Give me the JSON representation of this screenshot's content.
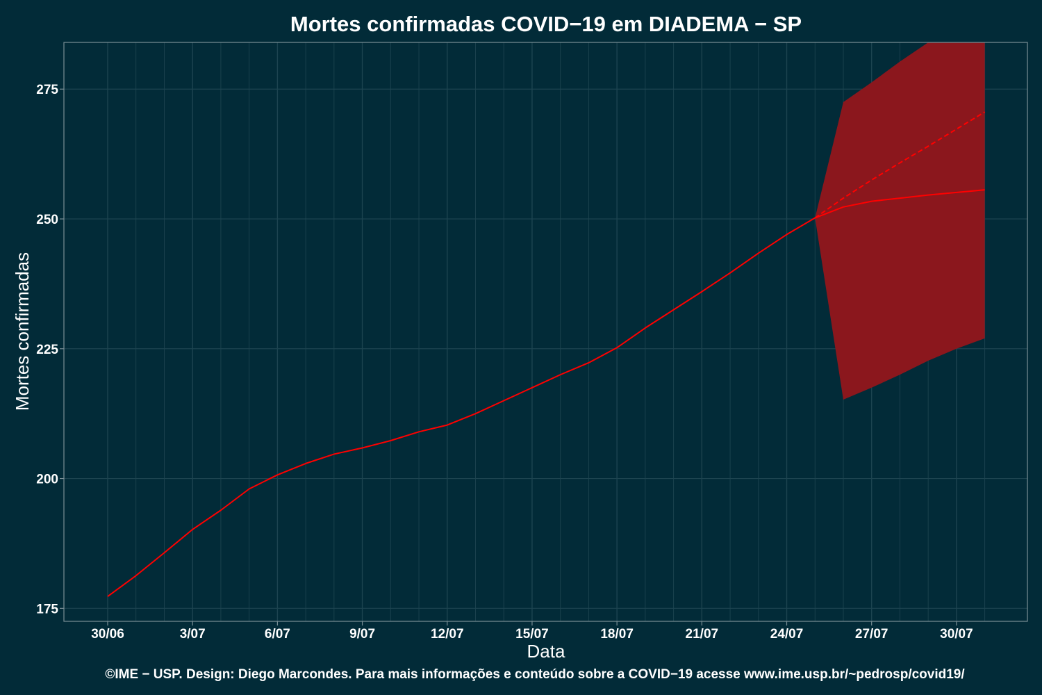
{
  "colors": {
    "background": "#022b38",
    "panel_border": "#7a8f96",
    "grid": "#1d4450",
    "line": "#ff0000",
    "band": "#8b171d",
    "text": "#ffffff"
  },
  "chart_data": {
    "type": "line",
    "title": "Mortes confirmadas COVID−19 em DIADEMA − SP",
    "xlabel": "Data",
    "ylabel": "Mortes confirmadas",
    "caption": "©IME − USP. Design: Diego Marcondes. Para mais informações e conteúdo sobre a COVID−19 acesse www.ime.usp.br/~pedrosp/covid19/",
    "x_dates": [
      "30/06",
      "1/07",
      "2/07",
      "3/07",
      "4/07",
      "5/07",
      "6/07",
      "7/07",
      "8/07",
      "9/07",
      "10/07",
      "11/07",
      "12/07",
      "13/07",
      "14/07",
      "15/07",
      "16/07",
      "17/07",
      "18/07",
      "19/07",
      "20/07",
      "21/07",
      "22/07",
      "23/07",
      "24/07",
      "25/07",
      "26/07",
      "27/07",
      "28/07",
      "29/07",
      "30/07",
      "31/07"
    ],
    "x_tick_labels": [
      "30/06",
      "3/07",
      "6/07",
      "9/07",
      "12/07",
      "15/07",
      "18/07",
      "21/07",
      "24/07",
      "27/07",
      "30/07"
    ],
    "y_ticks": [
      175,
      200,
      225,
      250,
      275
    ],
    "ylim": [
      172.5,
      284
    ],
    "grid": true,
    "series": [
      {
        "style": "solid",
        "x": [
          "30/06",
          "1/07",
          "2/07",
          "3/07",
          "4/07",
          "5/07",
          "6/07",
          "7/07",
          "8/07",
          "9/07",
          "10/07",
          "11/07",
          "12/07",
          "13/07",
          "14/07",
          "15/07",
          "16/07",
          "17/07",
          "18/07",
          "19/07",
          "20/07",
          "21/07",
          "22/07",
          "23/07",
          "24/07",
          "25/07",
          "26/07",
          "27/07",
          "28/07",
          "29/07",
          "30/07",
          "31/07"
        ],
        "values": [
          177.3,
          181.3,
          185.7,
          190.2,
          193.9,
          198.0,
          200.7,
          202.9,
          204.7,
          205.9,
          207.3,
          209.0,
          210.3,
          212.5,
          215.0,
          217.5,
          220.0,
          222.3,
          225.2,
          229.0,
          232.5,
          236.0,
          239.6,
          243.4,
          247.0,
          250.2,
          252.3,
          253.4,
          254.0,
          254.6,
          255.1,
          255.6
        ]
      },
      {
        "style": "dashed",
        "x": [
          "25/07",
          "26/07",
          "27/07",
          "28/07",
          "29/07",
          "30/07",
          "31/07"
        ],
        "values": [
          250.2,
          254.0,
          257.5,
          260.8,
          264.0,
          267.3,
          270.6
        ]
      }
    ],
    "band": {
      "x": [
        "25/07",
        "26/07",
        "27/07",
        "28/07",
        "29/07",
        "30/07",
        "31/07"
      ],
      "lower": [
        250.2,
        215.2,
        217.5,
        220.0,
        222.7,
        225.0,
        227.0
      ],
      "upper": [
        250.2,
        272.5,
        276.3,
        280.3,
        284.0,
        287.5,
        291.0
      ]
    }
  }
}
